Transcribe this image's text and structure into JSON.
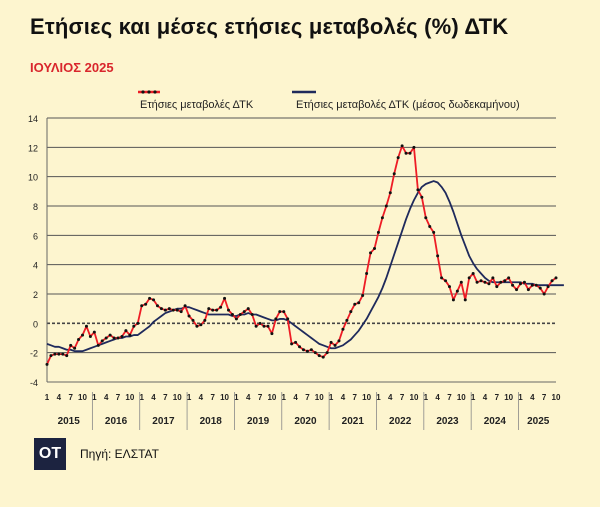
{
  "header": {
    "title": "Ετήσιες και μέσες ετήσιες μεταβολές (%) ΔΤΚ",
    "subtitle": "ΙΟΥΛΙΟΣ 2025"
  },
  "footer": {
    "logo_text": "ΟΤ",
    "source": "Πηγή: ΕΛΣΤΑΤ"
  },
  "colors": {
    "annual": "#ee1c25",
    "average": "#1f2a5c",
    "marker": "#111111",
    "grid": "#555555"
  },
  "chart_data": {
    "type": "line",
    "title": "Ετήσιες και μέσες ετήσιες μεταβολές (%) ΔΤΚ",
    "subtitle": "ΙΟΥΛΙΟΣ 2025",
    "ylim": [
      -4,
      14
    ],
    "yticks": [
      -4,
      -2,
      0,
      2,
      4,
      6,
      8,
      10,
      12,
      14
    ],
    "month_tick_labels": [
      "1",
      "4",
      "7",
      "10"
    ],
    "years": [
      "2015",
      "2016",
      "2017",
      "2018",
      "2019",
      "2020",
      "2021",
      "2022",
      "2023",
      "2024",
      "2025"
    ],
    "period": "2015-01 to 2025-07 (monthly)",
    "grid": true,
    "legend_position": "top",
    "series": [
      {
        "name": "Ετήσιες μεταβολές ΔΤΚ",
        "color": "#ee1c25",
        "markers": true,
        "values": [
          -2.8,
          -2.2,
          -2.1,
          -2.1,
          -2.1,
          -2.2,
          -1.5,
          -1.7,
          -1.1,
          -0.8,
          -0.2,
          -0.9,
          -0.6,
          -1.5,
          -1.2,
          -1.0,
          -0.8,
          -1.0,
          -1.0,
          -0.9,
          -0.5,
          -0.8,
          -0.2,
          0.0,
          1.2,
          1.3,
          1.7,
          1.6,
          1.2,
          1.0,
          0.9,
          1.0,
          0.9,
          0.9,
          0.8,
          1.2,
          0.5,
          0.2,
          -0.2,
          -0.1,
          0.2,
          1.0,
          0.9,
          0.9,
          1.1,
          1.7,
          0.9,
          0.6,
          0.3,
          0.6,
          0.8,
          1.0,
          0.6,
          -0.2,
          0.0,
          -0.2,
          -0.2,
          -0.7,
          0.3,
          0.8,
          0.8,
          0.3,
          -1.4,
          -1.3,
          -1.6,
          -1.8,
          -1.9,
          -1.8,
          -2.0,
          -2.2,
          -2.3,
          -2.0,
          -1.3,
          -1.5,
          -1.2,
          -0.4,
          0.2,
          0.8,
          1.3,
          1.4,
          1.9,
          3.4,
          4.8,
          5.1,
          6.2,
          7.2,
          8.0,
          8.9,
          10.2,
          11.3,
          12.1,
          11.6,
          11.6,
          12.0,
          9.1,
          8.6,
          7.2,
          6.6,
          6.2,
          4.6,
          3.1,
          2.9,
          2.5,
          1.6,
          2.2,
          2.8,
          1.6,
          3.1,
          3.4,
          2.8,
          2.9,
          2.8,
          2.7,
          3.1,
          2.5,
          2.8,
          2.9,
          3.1,
          2.6,
          2.3,
          2.7,
          2.8,
          2.3,
          2.6,
          2.6,
          2.4,
          2.0,
          2.5,
          2.9,
          3.1
        ]
      },
      {
        "name": "Ετήσιες μεταβολές ΔΤΚ (μέσος δωδεκαμήνου)",
        "color": "#1f2a5c",
        "markers": false,
        "values": [
          -1.4,
          -1.5,
          -1.6,
          -1.6,
          -1.7,
          -1.8,
          -1.8,
          -1.9,
          -1.9,
          -1.9,
          -1.8,
          -1.7,
          -1.6,
          -1.5,
          -1.4,
          -1.3,
          -1.2,
          -1.1,
          -1.0,
          -1.0,
          -0.9,
          -0.9,
          -0.8,
          -0.8,
          -0.6,
          -0.4,
          -0.2,
          0.1,
          0.3,
          0.5,
          0.7,
          0.8,
          0.9,
          1.0,
          1.0,
          1.1,
          1.1,
          1.0,
          0.9,
          0.8,
          0.7,
          0.6,
          0.6,
          0.6,
          0.6,
          0.6,
          0.6,
          0.5,
          0.5,
          0.6,
          0.6,
          0.7,
          0.6,
          0.6,
          0.5,
          0.4,
          0.3,
          0.2,
          0.2,
          0.3,
          0.3,
          0.2,
          0.0,
          -0.2,
          -0.4,
          -0.6,
          -0.8,
          -1.0,
          -1.2,
          -1.4,
          -1.5,
          -1.6,
          -1.7,
          -1.7,
          -1.6,
          -1.5,
          -1.3,
          -1.1,
          -0.8,
          -0.5,
          -0.1,
          0.3,
          0.8,
          1.3,
          1.8,
          2.4,
          3.1,
          3.9,
          4.7,
          5.5,
          6.3,
          7.1,
          7.8,
          8.4,
          8.9,
          9.3,
          9.5,
          9.6,
          9.7,
          9.6,
          9.3,
          8.9,
          8.3,
          7.6,
          6.8,
          6.0,
          5.3,
          4.6,
          4.1,
          3.7,
          3.4,
          3.1,
          2.9,
          2.8,
          2.8,
          2.8,
          2.8,
          2.8,
          2.8,
          2.8,
          2.8,
          2.7,
          2.7,
          2.7,
          2.6,
          2.6,
          2.6,
          2.6,
          2.6,
          2.6,
          2.6,
          2.6
        ]
      }
    ]
  }
}
